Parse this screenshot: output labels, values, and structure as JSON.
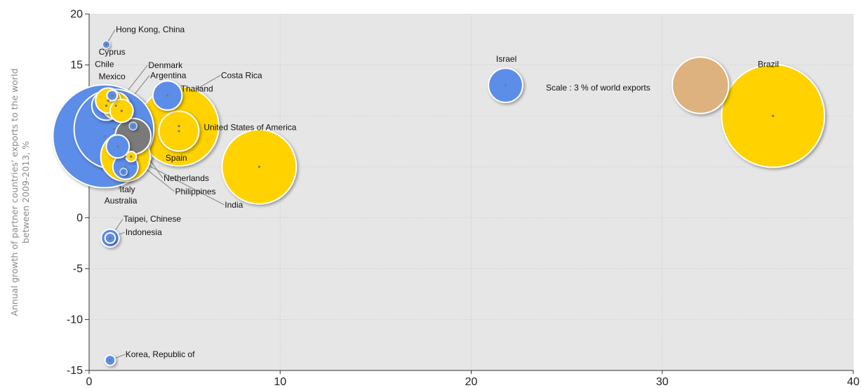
{
  "colors": {
    "blue": "#5b8de8",
    "gold": "#ffd200",
    "gray": "#7a7a7a",
    "tan": "#ddb27e",
    "plot_bg": "#e6e6e6",
    "grid": "#c8c8c8"
  },
  "chart_data": {
    "type": "scatter",
    "title": "",
    "xlabel": "",
    "ylabel_lines": [
      "Annual growth of partner countries' exports to the world",
      "between 2009-2013, %"
    ],
    "xlim": [
      0,
      40
    ],
    "ylim": [
      -15,
      20
    ],
    "x_ticks": [
      0,
      10,
      20,
      30,
      40
    ],
    "y_ticks": [
      -15,
      -10,
      -5,
      0,
      5,
      10,
      15,
      20
    ],
    "grid": true,
    "scale_note": "Scale : 3 % of world exports",
    "scale_bubble": {
      "x": 32,
      "y": 13,
      "size": 3,
      "color": "tan"
    },
    "points": [
      {
        "label": "Hong Kong, China",
        "x": 0.9,
        "y": 17,
        "size": 0.05,
        "color": "blue",
        "label_x": 1.4,
        "label_y": 18.2,
        "leader": true
      },
      {
        "label": "Cyprus",
        "x": 1.2,
        "y": 12,
        "size": 0.1,
        "color": "blue",
        "label_x": 0.5,
        "label_y": 16,
        "leader": false
      },
      {
        "label": "Chile",
        "x": 1.0,
        "y": 11.5,
        "size": 0.6,
        "color": "gold",
        "label_x": 0.3,
        "label_y": 14.8,
        "leader": false
      },
      {
        "label": "Mexico",
        "x": 0.9,
        "y": 11,
        "size": 0.8,
        "color": "blue",
        "label_x": 0.5,
        "label_y": 13.6,
        "leader": false
      },
      {
        "label": "Denmark",
        "x": 1.4,
        "y": 11,
        "size": 0.7,
        "color": "gold",
        "label_x": 3.1,
        "label_y": 14.7,
        "leader": true
      },
      {
        "label": "Argentina",
        "x": 1.7,
        "y": 10.5,
        "size": 0.5,
        "color": "gold",
        "label_x": 3.2,
        "label_y": 13.7,
        "leader": true
      },
      {
        "label": "Thailand",
        "x": 4.1,
        "y": 12,
        "size": 0.8,
        "color": "blue",
        "label_x": 4.8,
        "label_y": 12.4,
        "leader": false
      },
      {
        "label": "Costa Rica",
        "x": 2.3,
        "y": 9,
        "size": 0.06,
        "color": "blue",
        "label_x": 6.9,
        "label_y": 13.7,
        "leader": true
      },
      {
        "label": "United States of America",
        "x": 4.7,
        "y": 9,
        "size": 6.0,
        "color": "gold",
        "label_x": 6.0,
        "label_y": 8.6,
        "leader": false
      },
      {
        "label": "",
        "x": 1.3,
        "y": 8.7,
        "size": 6.0,
        "color": "blue",
        "label_x": 0,
        "label_y": 0,
        "leader": false
      },
      {
        "label": "Netherlands",
        "x": 2.3,
        "y": 8,
        "size": 1.2,
        "color": "gray",
        "label_x": 3.9,
        "label_y": 3.6,
        "leader": true
      },
      {
        "label": "",
        "x": 0.8,
        "y": 8,
        "size": 10.0,
        "color": "blue",
        "label_x": 0,
        "label_y": 0,
        "leader": false
      },
      {
        "label": "Spain",
        "x": 4.7,
        "y": 8.5,
        "size": 1.5,
        "color": "gold",
        "label_x": 4.0,
        "label_y": 5.6,
        "leader": false
      },
      {
        "label": "Philippines",
        "x": 1.5,
        "y": 7,
        "size": 0.5,
        "color": "blue",
        "label_x": 4.5,
        "label_y": 2.3,
        "leader": true
      },
      {
        "label": "",
        "x": 1.9,
        "y": 6,
        "size": 2.3,
        "color": "gold",
        "label_x": 0,
        "label_y": 0,
        "leader": false
      },
      {
        "label": "India",
        "x": 2.2,
        "y": 6,
        "size": 0.1,
        "color": "gold",
        "label_x": 7.1,
        "label_y": 1.0,
        "leader": true
      },
      {
        "label": "Italy",
        "x": 1.9,
        "y": 5,
        "size": 0.6,
        "color": "blue",
        "label_x": 1.6,
        "label_y": 2.5,
        "leader": true
      },
      {
        "label": "Australia",
        "x": 1.8,
        "y": 4.5,
        "size": 0.05,
        "color": "blue",
        "label_x": 0.8,
        "label_y": 1.4,
        "leader": false
      },
      {
        "label": "",
        "x": 8.9,
        "y": 5,
        "size": 5.2,
        "color": "gold",
        "label_x": 0,
        "label_y": 0,
        "leader": false
      },
      {
        "label": "Taipei, Chinese",
        "x": 1.1,
        "y": -2,
        "size": 0.1,
        "color": "blue",
        "label_x": 1.8,
        "label_y": -0.4,
        "leader": true
      },
      {
        "label": "Indonesia",
        "x": 1.1,
        "y": -2,
        "size": 0.3,
        "color": "blue",
        "label_x": 1.9,
        "label_y": -1.7,
        "leader": true
      },
      {
        "label": "Korea, Republic of",
        "x": 1.1,
        "y": -14,
        "size": 0.1,
        "color": "blue",
        "label_x": 1.9,
        "label_y": -13.7,
        "leader": true
      },
      {
        "label": "Israel",
        "x": 21.8,
        "y": 13,
        "size": 1.1,
        "color": "blue",
        "label_x": 21.3,
        "label_y": 15.3,
        "leader": false
      },
      {
        "label": "Brazil",
        "x": 35.8,
        "y": 10,
        "size": 10.0,
        "color": "gold",
        "label_x": 35.0,
        "label_y": 14.8,
        "leader": false
      }
    ]
  }
}
